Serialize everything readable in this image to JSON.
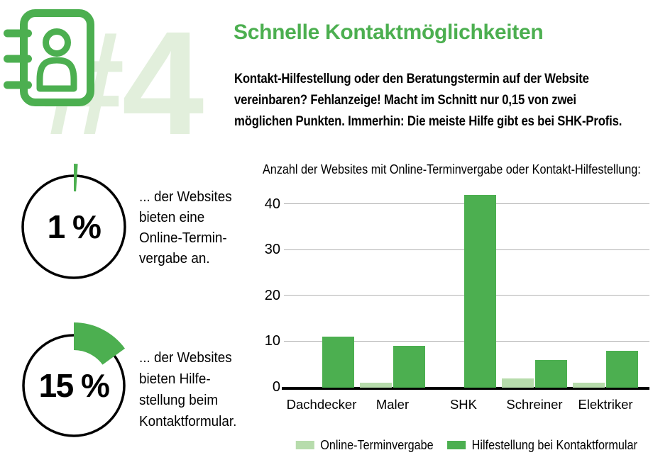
{
  "header": {
    "number_watermark": "#4",
    "title": "Schnelle Kontaktmöglichkeiten",
    "intro_lines": [
      "Kontakt-Hilfestellung oder den Beratungstermin auf der Website",
      "vereinbaren? Fehlanzeige! Macht im Schnitt nur 0,15 von zwei",
      "möglichen Punkten. Immerhin: Die meiste Hilfe gibt es bei SHK-Profis."
    ]
  },
  "stats": [
    {
      "value": "1 %",
      "percent": 1,
      "lines": [
        "... der Websites",
        "bieten eine",
        "Online-Termin-",
        "vergabe an."
      ]
    },
    {
      "value": "15 %",
      "percent": 15,
      "lines": [
        "... der Websites",
        "bieten Hilfe-",
        "stellung beim",
        "Kontaktformular."
      ]
    }
  ],
  "colors": {
    "green": "#4caf50",
    "light_green": "#b7dcac",
    "watermark_green": "#e2efdc",
    "grid_gray": "#b3b3b3",
    "text_black": "#000000"
  },
  "chart_data": {
    "type": "bar",
    "title": "Anzahl der Websites mit Online-Terminvergabe oder Kontakt-Hilfestellung:",
    "categories": [
      "Dachdecker",
      "Maler",
      "SHK",
      "Schreiner",
      "Elektriker"
    ],
    "series": [
      {
        "name": "Online-Terminvergabe",
        "color_key": "light_green",
        "values": [
          0,
          1,
          0,
          2,
          1
        ]
      },
      {
        "name": "Hilfestellung bei Kontaktformular",
        "color_key": "green",
        "values": [
          11,
          9,
          42,
          6,
          8
        ]
      }
    ],
    "yticks": [
      0,
      10,
      20,
      30,
      40
    ],
    "ylim": [
      0,
      43.5
    ],
    "xlabel": "",
    "ylabel": "",
    "grid": true,
    "legend_position": "bottom"
  }
}
